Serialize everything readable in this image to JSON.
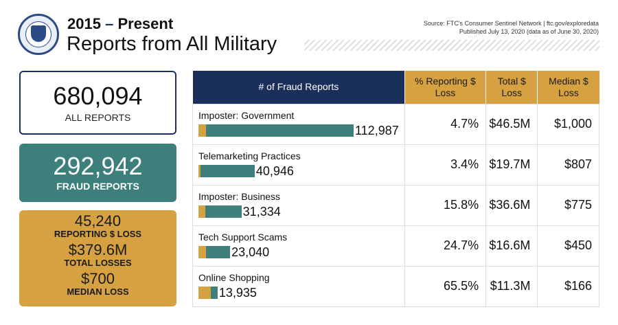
{
  "header": {
    "year_range": "2015",
    "dash": "–",
    "present": "Present",
    "title": "Reports from All Military",
    "source": "Source: FTC's Consumer Sentinel Network  |  ftc.gov/exploredata",
    "published": "Published July 13, 2020 (data as of June 30, 2020)"
  },
  "summary": {
    "all_reports": "680,094",
    "all_reports_label": "ALL REPORTS",
    "fraud_reports": "292,942",
    "fraud_reports_label": "FRAUD REPORTS",
    "reporting_loss": "45,240",
    "reporting_loss_label": "REPORTING $ LOSS",
    "total_losses": "$379.6M",
    "total_losses_label": "TOTAL LOSSES",
    "median_loss": "$700",
    "median_loss_label": "MEDIAN LOSS"
  },
  "table": {
    "headers": [
      "# of Fraud Reports",
      "% Reporting $ Loss",
      "Total $ Loss",
      "Median $ Loss"
    ],
    "rows": [
      {
        "category": "Imposter: Government",
        "reports": "112,987",
        "count": 112987,
        "pct": "4.7%",
        "pct_value": 4.7,
        "total": "$46.5M",
        "median": "$1,000"
      },
      {
        "category": "Telemarketing Practices",
        "reports": "40,946",
        "count": 40946,
        "pct": "3.4%",
        "pct_value": 3.4,
        "total": "$19.7M",
        "median": "$807"
      },
      {
        "category": "Imposter: Business",
        "reports": "31,334",
        "count": 31334,
        "pct": "15.8%",
        "pct_value": 15.8,
        "total": "$36.6M",
        "median": "$775"
      },
      {
        "category": "Tech Support Scams",
        "reports": "23,040",
        "count": 23040,
        "pct": "24.7%",
        "pct_value": 24.7,
        "total": "$16.6M",
        "median": "$450"
      },
      {
        "category": "Online Shopping",
        "reports": "13,935",
        "count": 13935,
        "pct": "65.5%",
        "pct_value": 65.5,
        "total": "$11.3M",
        "median": "$166"
      }
    ]
  },
  "colors": {
    "navy": "#1b2f5b",
    "teal": "#3d7f7a",
    "gold": "#d6a140"
  }
}
